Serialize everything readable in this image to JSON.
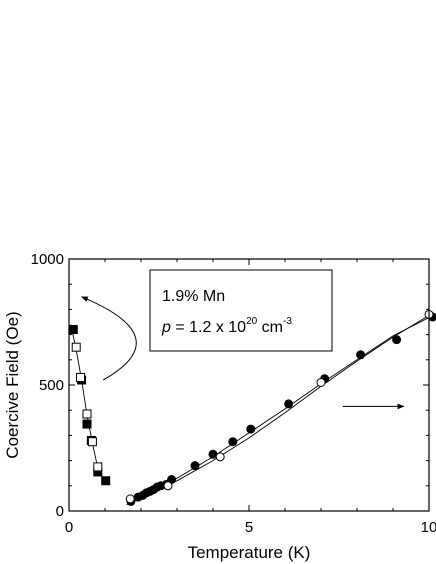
{
  "chart_data": {
    "type": "scatter",
    "xlabel": "Temperature (K)",
    "ylabel": "Coercive Field (Oe)",
    "xlim": [
      0,
      10
    ],
    "ylim": [
      0,
      1000
    ],
    "x_ticks": [
      0,
      5,
      10
    ],
    "y_ticks": [
      0,
      500,
      1000
    ],
    "grid": false,
    "annotation": {
      "line1": "1.9% Mn",
      "line2_symbol": "p",
      "line2_text": " = 1.2 x 10",
      "line2_exp1": "20",
      "line2_unit": " cm",
      "line2_exp2": "-3"
    },
    "series": [
      {
        "marker": "filled-square",
        "points": [
          [
            0.12,
            720
          ],
          [
            0.35,
            520
          ],
          [
            0.5,
            345
          ],
          [
            0.62,
            280
          ],
          [
            0.8,
            155
          ],
          [
            1.02,
            120
          ]
        ]
      },
      {
        "marker": "open-square",
        "points": [
          [
            0.2,
            650
          ],
          [
            0.32,
            530
          ],
          [
            0.5,
            385
          ],
          [
            0.65,
            275
          ],
          [
            0.8,
            175
          ]
        ]
      },
      {
        "marker": "filled-circle",
        "points": [
          [
            1.72,
            38
          ],
          [
            1.92,
            55
          ],
          [
            2.05,
            62
          ],
          [
            2.15,
            72
          ],
          [
            2.25,
            78
          ],
          [
            2.35,
            85
          ],
          [
            2.45,
            95
          ],
          [
            2.55,
            100
          ],
          [
            2.7,
            105
          ],
          [
            2.85,
            125
          ],
          [
            3.5,
            180
          ],
          [
            4.0,
            225
          ],
          [
            4.55,
            275
          ],
          [
            5.05,
            325
          ],
          [
            6.1,
            425
          ],
          [
            7.1,
            525
          ],
          [
            8.1,
            620
          ],
          [
            9.1,
            680
          ],
          [
            10.1,
            770
          ]
        ]
      },
      {
        "marker": "open-circle",
        "points": [
          [
            1.7,
            48
          ],
          [
            2.75,
            100
          ],
          [
            4.2,
            215
          ],
          [
            7.0,
            510
          ],
          [
            10.0,
            780
          ]
        ]
      }
    ],
    "fit_lines": [
      {
        "points": [
          [
            0.05,
            740
          ],
          [
            0.2,
            640
          ],
          [
            0.35,
            520
          ],
          [
            0.5,
            380
          ],
          [
            0.65,
            270
          ],
          [
            0.8,
            170
          ],
          [
            0.95,
            125
          ]
        ]
      },
      {
        "points": [
          [
            1.6,
            25
          ],
          [
            2.2,
            65
          ],
          [
            3.0,
            120
          ],
          [
            4.0,
            200
          ],
          [
            5.0,
            290
          ],
          [
            6.0,
            390
          ],
          [
            7.0,
            495
          ],
          [
            8.0,
            595
          ],
          [
            9.0,
            690
          ],
          [
            10.1,
            785
          ]
        ]
      },
      {
        "points": [
          [
            1.6,
            35
          ],
          [
            2.2,
            70
          ],
          [
            3.0,
            130
          ],
          [
            4.0,
            215
          ],
          [
            5.0,
            310
          ],
          [
            6.0,
            405
          ],
          [
            7.0,
            505
          ],
          [
            8.0,
            600
          ],
          [
            9.0,
            695
          ],
          [
            10.1,
            775
          ]
        ]
      }
    ],
    "arrows": [
      {
        "direction": "left-axis",
        "points": [
          [
            0.95,
            520
          ],
          [
            3.05,
            690
          ],
          [
            0.35,
            850
          ]
        ]
      },
      {
        "direction": "right-axis",
        "points": [
          [
            7.6,
            415
          ],
          [
            9.3,
            415
          ]
        ]
      }
    ]
  }
}
